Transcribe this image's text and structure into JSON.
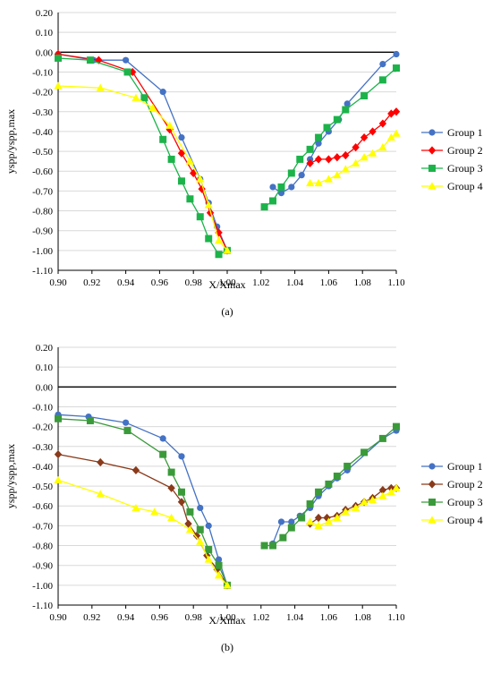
{
  "chart_data": [
    {
      "type": "line",
      "panel_label": "(a)",
      "xlabel": "X/Xmax",
      "ylabel": "yspp/yspp,max",
      "xlim": [
        0.9,
        1.1
      ],
      "ylim": [
        -1.1,
        0.2
      ],
      "x_ticks": [
        "0.90",
        "0.92",
        "0.94",
        "0.96",
        "0.98",
        "1.00",
        "1.02",
        "1.04",
        "1.06",
        "1.08",
        "1.10"
      ],
      "y_ticks": [
        "0.20",
        "0.10",
        "0.00",
        "-0.10",
        "-0.20",
        "-0.30",
        "-0.40",
        "-0.50",
        "-0.60",
        "-0.70",
        "-0.80",
        "-0.90",
        "-1.00",
        "-1.10"
      ],
      "grid": "horizontal",
      "legend": "right",
      "series": [
        {
          "name": "Group 1",
          "color": "#4472C4",
          "marker": "circle",
          "segments": [
            [
              [
                0.9,
                -0.01
              ],
              [
                0.921,
                -0.04
              ],
              [
                0.94,
                -0.04
              ],
              [
                0.962,
                -0.2
              ],
              [
                0.973,
                -0.43
              ],
              [
                0.984,
                -0.64
              ],
              [
                0.989,
                -0.76
              ],
              [
                0.994,
                -0.88
              ],
              [
                1.0,
                -1.0
              ]
            ],
            [
              [
                1.027,
                -0.68
              ],
              [
                1.032,
                -0.71
              ],
              [
                1.038,
                -0.68
              ],
              [
                1.044,
                -0.62
              ],
              [
                1.049,
                -0.54
              ],
              [
                1.054,
                -0.46
              ],
              [
                1.06,
                -0.4
              ],
              [
                1.066,
                -0.34
              ],
              [
                1.071,
                -0.26
              ],
              [
                1.092,
                -0.06
              ],
              [
                1.1,
                -0.01
              ]
            ]
          ]
        },
        {
          "name": "Group 2",
          "color": "#FF0000",
          "marker": "diamond",
          "segments": [
            [
              [
                0.9,
                -0.01
              ],
              [
                0.924,
                -0.04
              ],
              [
                0.944,
                -0.1
              ],
              [
                0.966,
                -0.39
              ],
              [
                0.973,
                -0.51
              ],
              [
                0.98,
                -0.61
              ],
              [
                0.985,
                -0.69
              ],
              [
                0.99,
                -0.81
              ],
              [
                0.995,
                -0.91
              ],
              [
                1.0,
                -1.0
              ]
            ],
            [
              [
                1.049,
                -0.56
              ],
              [
                1.054,
                -0.54
              ],
              [
                1.06,
                -0.54
              ],
              [
                1.065,
                -0.53
              ],
              [
                1.07,
                -0.52
              ],
              [
                1.076,
                -0.48
              ],
              [
                1.081,
                -0.43
              ],
              [
                1.086,
                -0.4
              ],
              [
                1.092,
                -0.36
              ],
              [
                1.097,
                -0.31
              ],
              [
                1.1,
                -0.3
              ]
            ]
          ]
        },
        {
          "name": "Group 3",
          "color": "#1CB34A",
          "marker": "square",
          "segments": [
            [
              [
                0.9,
                -0.03
              ],
              [
                0.919,
                -0.04
              ],
              [
                0.941,
                -0.1
              ],
              [
                0.951,
                -0.23
              ],
              [
                0.962,
                -0.44
              ],
              [
                0.967,
                -0.54
              ],
              [
                0.973,
                -0.65
              ],
              [
                0.978,
                -0.74
              ],
              [
                0.984,
                -0.83
              ],
              [
                0.989,
                -0.94
              ],
              [
                0.995,
                -1.02
              ],
              [
                1.0,
                -1.0
              ]
            ],
            [
              [
                1.022,
                -0.78
              ],
              [
                1.027,
                -0.75
              ],
              [
                1.032,
                -0.68
              ],
              [
                1.038,
                -0.61
              ],
              [
                1.043,
                -0.54
              ],
              [
                1.049,
                -0.49
              ],
              [
                1.054,
                -0.43
              ],
              [
                1.059,
                -0.38
              ],
              [
                1.065,
                -0.34
              ],
              [
                1.07,
                -0.29
              ],
              [
                1.081,
                -0.22
              ],
              [
                1.092,
                -0.14
              ],
              [
                1.1,
                -0.08
              ]
            ]
          ]
        },
        {
          "name": "Group 4",
          "color": "#FFFF00",
          "marker": "triangle",
          "segments": [
            [
              [
                0.9,
                -0.17
              ],
              [
                0.925,
                -0.18
              ],
              [
                0.946,
                -0.23
              ],
              [
                0.956,
                -0.28
              ],
              [
                0.966,
                -0.37
              ],
              [
                0.978,
                -0.55
              ],
              [
                0.984,
                -0.64
              ],
              [
                0.989,
                -0.77
              ],
              [
                0.995,
                -0.95
              ],
              [
                1.0,
                -1.0
              ]
            ],
            [
              [
                1.049,
                -0.66
              ],
              [
                1.054,
                -0.66
              ],
              [
                1.06,
                -0.64
              ],
              [
                1.065,
                -0.62
              ],
              [
                1.07,
                -0.59
              ],
              [
                1.076,
                -0.56
              ],
              [
                1.081,
                -0.53
              ],
              [
                1.086,
                -0.51
              ],
              [
                1.092,
                -0.48
              ],
              [
                1.097,
                -0.43
              ],
              [
                1.1,
                -0.41
              ]
            ]
          ]
        }
      ]
    },
    {
      "type": "line",
      "panel_label": "(b)",
      "xlabel": "X/Xmax",
      "ylabel": "yspp/yspp,max",
      "xlim": [
        0.9,
        1.1
      ],
      "ylim": [
        -1.1,
        0.2
      ],
      "x_ticks": [
        "0.90",
        "0.92",
        "0.94",
        "0.96",
        "0.98",
        "1.00",
        "1.02",
        "1.04",
        "1.06",
        "1.08",
        "1.10"
      ],
      "y_ticks": [
        "0.20",
        "0.10",
        "0.00",
        "-0.10",
        "-0.20",
        "-0.30",
        "-0.40",
        "-0.50",
        "-0.60",
        "-0.70",
        "-0.80",
        "-0.90",
        "-1.00",
        "-1.10"
      ],
      "grid": "horizontal",
      "legend": "right",
      "series": [
        {
          "name": "Group 1",
          "color": "#4472C4",
          "marker": "circle",
          "segments": [
            [
              [
                0.9,
                -0.14
              ],
              [
                0.918,
                -0.15
              ],
              [
                0.94,
                -0.18
              ],
              [
                0.962,
                -0.26
              ],
              [
                0.973,
                -0.35
              ],
              [
                0.984,
                -0.61
              ],
              [
                0.989,
                -0.7
              ],
              [
                0.995,
                -0.87
              ],
              [
                1.0,
                -1.0
              ]
            ],
            [
              [
                1.027,
                -0.79
              ],
              [
                1.032,
                -0.68
              ],
              [
                1.038,
                -0.68
              ],
              [
                1.043,
                -0.65
              ],
              [
                1.049,
                -0.61
              ],
              [
                1.054,
                -0.55
              ],
              [
                1.06,
                -0.5
              ],
              [
                1.065,
                -0.46
              ],
              [
                1.071,
                -0.42
              ],
              [
                1.092,
                -0.26
              ],
              [
                1.1,
                -0.22
              ]
            ]
          ]
        },
        {
          "name": "Group 2",
          "color": "#8B3A1A",
          "marker": "diamond",
          "segments": [
            [
              [
                0.9,
                -0.34
              ],
              [
                0.925,
                -0.38
              ],
              [
                0.946,
                -0.42
              ],
              [
                0.967,
                -0.51
              ],
              [
                0.973,
                -0.58
              ],
              [
                0.977,
                -0.69
              ],
              [
                0.982,
                -0.75
              ],
              [
                0.988,
                -0.85
              ],
              [
                0.994,
                -0.92
              ],
              [
                1.0,
                -1.0
              ]
            ],
            [
              [
                1.049,
                -0.69
              ],
              [
                1.054,
                -0.66
              ],
              [
                1.059,
                -0.66
              ],
              [
                1.065,
                -0.65
              ],
              [
                1.07,
                -0.62
              ],
              [
                1.076,
                -0.6
              ],
              [
                1.081,
                -0.58
              ],
              [
                1.086,
                -0.56
              ],
              [
                1.092,
                -0.52
              ],
              [
                1.097,
                -0.51
              ],
              [
                1.1,
                -0.51
              ]
            ]
          ]
        },
        {
          "name": "Group 3",
          "color": "#3A9A3A",
          "marker": "square",
          "segments": [
            [
              [
                0.9,
                -0.16
              ],
              [
                0.919,
                -0.17
              ],
              [
                0.941,
                -0.22
              ],
              [
                0.962,
                -0.34
              ],
              [
                0.967,
                -0.43
              ],
              [
                0.973,
                -0.53
              ],
              [
                0.978,
                -0.63
              ],
              [
                0.984,
                -0.72
              ],
              [
                0.989,
                -0.82
              ],
              [
                0.995,
                -0.9
              ],
              [
                1.0,
                -1.0
              ]
            ],
            [
              [
                1.022,
                -0.8
              ],
              [
                1.027,
                -0.8
              ],
              [
                1.033,
                -0.76
              ],
              [
                1.038,
                -0.71
              ],
              [
                1.044,
                -0.66
              ],
              [
                1.049,
                -0.59
              ],
              [
                1.054,
                -0.53
              ],
              [
                1.06,
                -0.49
              ],
              [
                1.065,
                -0.45
              ],
              [
                1.071,
                -0.4
              ],
              [
                1.081,
                -0.33
              ],
              [
                1.092,
                -0.26
              ],
              [
                1.1,
                -0.2
              ]
            ]
          ]
        },
        {
          "name": "Group 4",
          "color": "#FFFF00",
          "marker": "triangle",
          "segments": [
            [
              [
                0.9,
                -0.47
              ],
              [
                0.925,
                -0.54
              ],
              [
                0.946,
                -0.61
              ],
              [
                0.957,
                -0.63
              ],
              [
                0.967,
                -0.66
              ],
              [
                0.978,
                -0.72
              ],
              [
                0.984,
                -0.78
              ],
              [
                0.989,
                -0.87
              ],
              [
                0.995,
                -0.95
              ],
              [
                1.0,
                -1.0
              ]
            ],
            [
              [
                1.049,
                -0.68
              ],
              [
                1.054,
                -0.7
              ],
              [
                1.06,
                -0.68
              ],
              [
                1.065,
                -0.66
              ],
              [
                1.07,
                -0.63
              ],
              [
                1.076,
                -0.61
              ],
              [
                1.081,
                -0.58
              ],
              [
                1.086,
                -0.57
              ],
              [
                1.092,
                -0.55
              ],
              [
                1.097,
                -0.53
              ],
              [
                1.1,
                -0.51
              ]
            ]
          ]
        }
      ]
    }
  ]
}
